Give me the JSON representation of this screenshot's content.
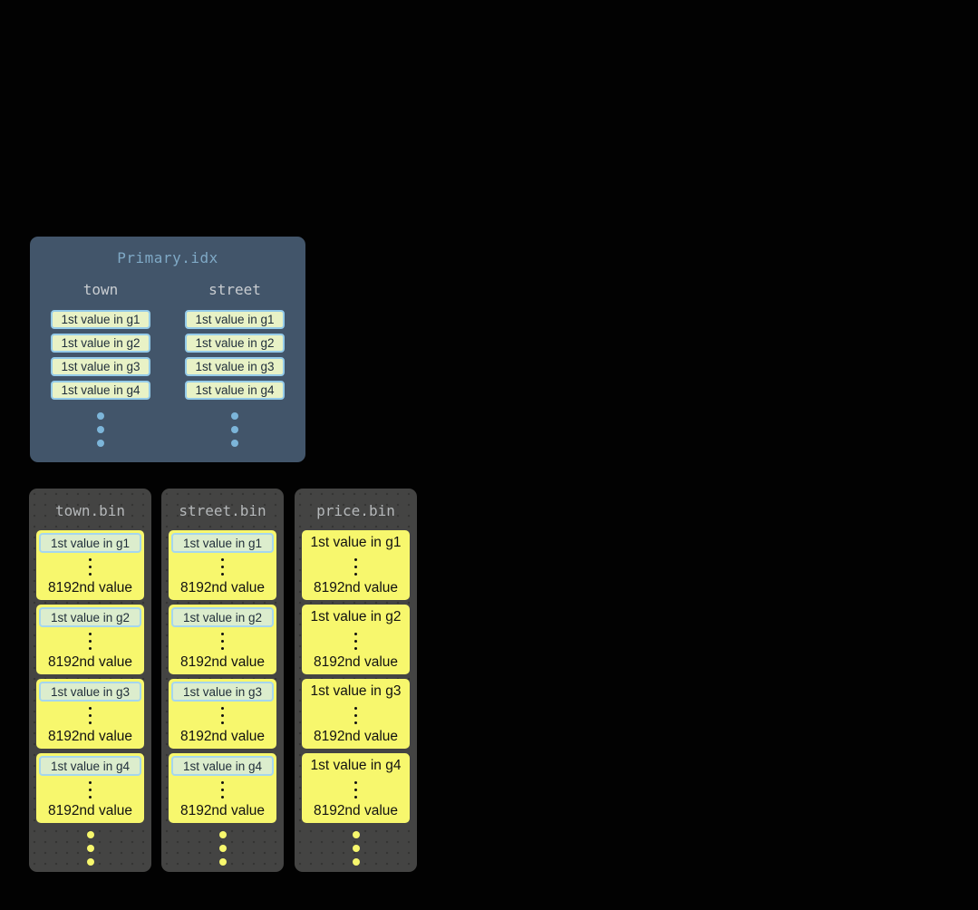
{
  "colors": {
    "page_bg": "#020202",
    "primary_panel_bg": "#42556a",
    "primary_title_text": "#7fa9c6",
    "primary_column_header_text": "#c9cdd1",
    "index_mark_bg": "#e8f2c6",
    "index_mark_border": "#94cbe9",
    "index_mark_text": "#1f2d3a",
    "primary_ellipsis_dot": "#7cb5d9",
    "bin_panel_bg": "#444443",
    "bin_title_text": "#b5b8ba",
    "granule_bg": "#f7f76d",
    "granule_text": "#111111",
    "bin_ellipsis_dot": "#f7f76d"
  },
  "primary_index": {
    "title": "Primary.idx",
    "columns": [
      {
        "header": "town",
        "entries": [
          "1st value in g1",
          "1st value in g2",
          "1st value in g3",
          "1st value in g4"
        ]
      },
      {
        "header": "street",
        "entries": [
          "1st value in g1",
          "1st value in g2",
          "1st value in g3",
          "1st value in g4"
        ]
      }
    ]
  },
  "bin_files": [
    {
      "title": "town.bin",
      "first_values_highlighted": true,
      "granules": [
        {
          "first": "1st value in g1",
          "last": "8192nd value"
        },
        {
          "first": "1st value in g2",
          "last": "8192nd value"
        },
        {
          "first": "1st value in g3",
          "last": "8192nd value"
        },
        {
          "first": "1st value in g4",
          "last": "8192nd value"
        }
      ]
    },
    {
      "title": "street.bin",
      "first_values_highlighted": true,
      "granules": [
        {
          "first": "1st value in g1",
          "last": "8192nd value"
        },
        {
          "first": "1st value in g2",
          "last": "8192nd value"
        },
        {
          "first": "1st value in g3",
          "last": "8192nd value"
        },
        {
          "first": "1st value in g4",
          "last": "8192nd value"
        }
      ]
    },
    {
      "title": "price.bin",
      "first_values_highlighted": false,
      "granules": [
        {
          "first": "1st value in g1",
          "last": "8192nd value"
        },
        {
          "first": "1st value in g2",
          "last": "8192nd value"
        },
        {
          "first": "1st value in g3",
          "last": "8192nd value"
        },
        {
          "first": "1st value in g4",
          "last": "8192nd value"
        }
      ]
    }
  ]
}
